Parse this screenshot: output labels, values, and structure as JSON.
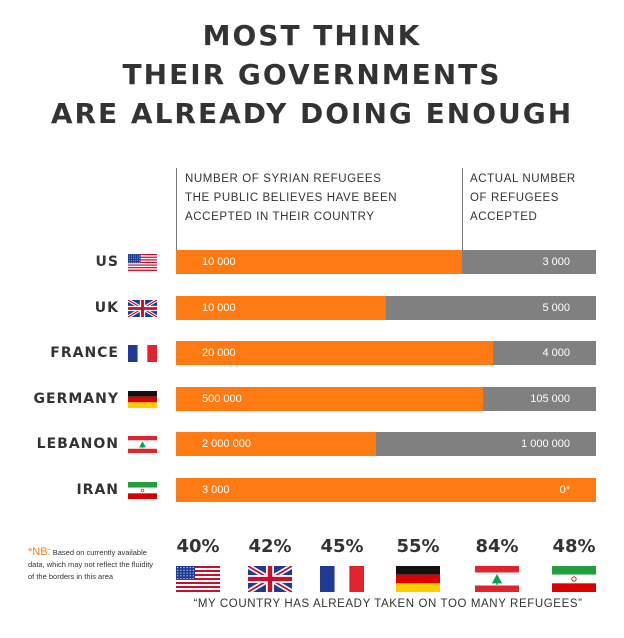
{
  "title_lines": [
    "MOST THINK",
    "THEIR GOVERNMENTS",
    "ARE ALREADY DOING ENOUGH"
  ],
  "header_left": [
    "NUMBER OF SYRIAN REFUGEES",
    "THE PUBLIC BELIEVES HAVE BEEN",
    "ACCEPTED IN THEIR COUNTRY"
  ],
  "header_right": [
    "ACTUAL NUMBER",
    "OF REFUGEES",
    "ACCEPTED"
  ],
  "colors": {
    "believed": "#ff7a12",
    "actual": "#808080",
    "text": "#333333"
  },
  "chart_data": [
    {
      "type": "bar",
      "orientation": "horizontal",
      "categories": [
        "US",
        "UK",
        "FRANCE",
        "GERMANY",
        "LEBANON",
        "IRAN"
      ],
      "series": [
        {
          "name": "NUMBER OF SYRIAN REFUGEES THE PUBLIC BELIEVES HAVE BEEN ACCEPTED IN THEIR COUNTRY",
          "values": [
            10000,
            10000,
            20000,
            500000,
            2000000,
            3000
          ],
          "labels": [
            "10 000",
            "10 000",
            "20 000",
            "500 000",
            "2 000 000",
            "3 000"
          ]
        },
        {
          "name": "ACTUAL NUMBER OF REFUGEES ACCEPTED",
          "values": [
            3000,
            5000,
            4000,
            105000,
            1000000,
            0
          ],
          "labels": [
            "3 000",
            "5 000",
            "4 000",
            "105 000",
            "1 000 000",
            "0*"
          ]
        }
      ]
    },
    {
      "type": "table",
      "categories": [
        "US",
        "UK",
        "FRANCE",
        "GERMANY",
        "LEBANON",
        "IRAN"
      ],
      "values": [
        40,
        42,
        45,
        55,
        84,
        48
      ],
      "labels": [
        "40%",
        "42%",
        "45%",
        "55%",
        "84%",
        "48%"
      ],
      "caption": "“MY COUNTRY HAS ALREADY TAKEN ON TOO MANY REFUGEES”"
    }
  ],
  "rows": [
    {
      "label": "US",
      "flag": "us-flag-icon",
      "believed": "10 000",
      "actual": "3 000",
      "believed_share": 0.68
    },
    {
      "label": "UK",
      "flag": "uk-flag-icon",
      "believed": "10 000",
      "actual": "5 000",
      "believed_share": 0.5
    },
    {
      "label": "FRANCE",
      "flag": "france-flag-icon",
      "believed": "20 000",
      "actual": "4 000",
      "believed_share": 0.755
    },
    {
      "label": "GERMANY",
      "flag": "germany-flag-icon",
      "believed": "500 000",
      "actual": "105 000",
      "believed_share": 0.73
    },
    {
      "label": "LEBANON",
      "flag": "lebanon-flag-icon",
      "believed": "2 000 000",
      "actual": "1 000 000",
      "believed_share": 0.475
    },
    {
      "label": "IRAN",
      "flag": "iran-flag-icon",
      "believed": "3 000",
      "actual": "0*",
      "believed_share": 1.0
    }
  ],
  "note": {
    "marker": "*NB:",
    "text": "Based on currently available data, which may not reflect the fluidity of the borders in this area"
  },
  "percentages": [
    {
      "value": "40%",
      "flag": "us-flag-icon"
    },
    {
      "value": "42%",
      "flag": "uk-flag-icon"
    },
    {
      "value": "45%",
      "flag": "france-flag-icon"
    },
    {
      "value": "55%",
      "flag": "germany-flag-icon"
    },
    {
      "value": "84%",
      "flag": "lebanon-flag-icon"
    },
    {
      "value": "48%",
      "flag": "iran-flag-icon"
    }
  ],
  "quote": "“MY COUNTRY HAS ALREADY TAKEN ON TOO MANY REFUGEES”"
}
